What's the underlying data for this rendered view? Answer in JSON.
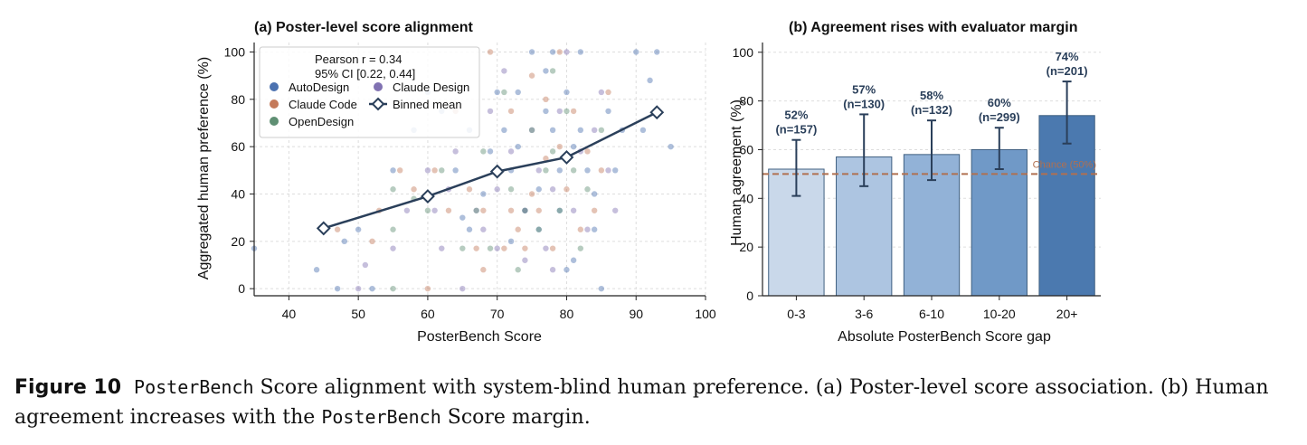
{
  "chart_data": [
    {
      "type": "scatter",
      "title": "(a) Poster-level score alignment",
      "xlabel": "PosterBench Score",
      "ylabel": "Aggregated human preference (%)",
      "xlim": [
        35,
        100
      ],
      "ylim": [
        -3,
        104
      ],
      "xticks": [
        40,
        50,
        60,
        70,
        80,
        90,
        100
      ],
      "yticks": [
        0,
        20,
        40,
        60,
        80,
        100
      ],
      "grid": true,
      "legend_placement": "top-left",
      "stats": [
        "Pearson r = 0.34",
        "95% CI [0.22, 0.44]"
      ],
      "legend": [
        {
          "label": "AutoDesign",
          "color": "#4C72B0",
          "marker": "dot"
        },
        {
          "label": "Claude Design",
          "color": "#8172B2",
          "marker": "dot"
        },
        {
          "label": "Claude Code",
          "color": "#C47A5A",
          "marker": "dot"
        },
        {
          "label": "Binned mean",
          "color": "#2A3F5A",
          "marker": "diamond-line"
        },
        {
          "label": "OpenDesign",
          "color": "#5F8F73",
          "marker": "dot"
        }
      ],
      "series": [
        {
          "name": "AutoDesign",
          "color": "#4C72B0",
          "points": [
            [
              35,
              17
            ],
            [
              44,
              8
            ],
            [
              47,
              0
            ],
            [
              48,
              20
            ],
            [
              50,
              25
            ],
            [
              52,
              0
            ],
            [
              55,
              50
            ],
            [
              58,
              67
            ],
            [
              60,
              83
            ],
            [
              62,
              75
            ],
            [
              64,
              50
            ],
            [
              65,
              30
            ],
            [
              66,
              67
            ],
            [
              68,
              40
            ],
            [
              70,
              83
            ],
            [
              71,
              67
            ],
            [
              72,
              50
            ],
            [
              73,
              60
            ],
            [
              75,
              100
            ],
            [
              76,
              25
            ],
            [
              77,
              75
            ],
            [
              78,
              67
            ],
            [
              79,
              50
            ],
            [
              80,
              83
            ],
            [
              81,
              60
            ],
            [
              82,
              67
            ],
            [
              83,
              50
            ],
            [
              84,
              40
            ],
            [
              85,
              0
            ],
            [
              86,
              75
            ],
            [
              87,
              50
            ],
            [
              88,
              67
            ],
            [
              90,
              100
            ],
            [
              91,
              67
            ],
            [
              92,
              88
            ],
            [
              93,
              100
            ],
            [
              95,
              60
            ],
            [
              78,
              100
            ],
            [
              82,
              100
            ],
            [
              76,
              42
            ],
            [
              74,
              33
            ],
            [
              72,
              20
            ],
            [
              80,
              8
            ],
            [
              84,
              25
            ],
            [
              79,
              33
            ],
            [
              73,
              83
            ],
            [
              77,
              92
            ],
            [
              81,
              12
            ],
            [
              66,
              25
            ],
            [
              69,
              58
            ]
          ]
        },
        {
          "name": "Claude Design",
          "color": "#8172B2",
          "points": [
            [
              50,
              0
            ],
            [
              51,
              10
            ],
            [
              55,
              17
            ],
            [
              57,
              33
            ],
            [
              60,
              50
            ],
            [
              62,
              17
            ],
            [
              63,
              42
            ],
            [
              65,
              0
            ],
            [
              67,
              33
            ],
            [
              68,
              25
            ],
            [
              70,
              17
            ],
            [
              70,
              42
            ],
            [
              72,
              58
            ],
            [
              74,
              33
            ],
            [
              75,
              67
            ],
            [
              76,
              50
            ],
            [
              77,
              17
            ],
            [
              78,
              42
            ],
            [
              79,
              75
            ],
            [
              80,
              100
            ],
            [
              81,
              33
            ],
            [
              82,
              58
            ],
            [
              83,
              25
            ],
            [
              84,
              67
            ],
            [
              85,
              83
            ],
            [
              86,
              50
            ],
            [
              87,
              33
            ],
            [
              74,
              12
            ],
            [
              78,
              8
            ],
            [
              71,
              92
            ],
            [
              69,
              75
            ],
            [
              64,
              58
            ],
            [
              61,
              33
            ]
          ]
        },
        {
          "name": "Claude Code",
          "color": "#C47A5A",
          "points": [
            [
              47,
              25
            ],
            [
              52,
              20
            ],
            [
              53,
              33
            ],
            [
              56,
              50
            ],
            [
              58,
              42
            ],
            [
              60,
              0
            ],
            [
              61,
              50
            ],
            [
              63,
              33
            ],
            [
              64,
              75
            ],
            [
              66,
              42
            ],
            [
              67,
              17
            ],
            [
              68,
              33
            ],
            [
              69,
              100
            ],
            [
              70,
              50
            ],
            [
              71,
              17
            ],
            [
              72,
              33
            ],
            [
              73,
              25
            ],
            [
              74,
              17
            ],
            [
              75,
              40
            ],
            [
              76,
              33
            ],
            [
              77,
              80
            ],
            [
              78,
              17
            ],
            [
              79,
              100
            ],
            [
              80,
              42
            ],
            [
              81,
              75
            ],
            [
              82,
              25
            ],
            [
              83,
              58
            ],
            [
              85,
              50
            ],
            [
              86,
              83
            ],
            [
              72,
              75
            ],
            [
              75,
              90
            ],
            [
              77,
              55
            ],
            [
              68,
              8
            ],
            [
              79,
              60
            ],
            [
              84,
              33
            ]
          ]
        },
        {
          "name": "OpenDesign",
          "color": "#5F8F73",
          "points": [
            [
              55,
              0
            ],
            [
              55,
              25
            ],
            [
              55,
              42
            ],
            [
              58,
              38
            ],
            [
              60,
              33
            ],
            [
              62,
              50
            ],
            [
              65,
              17
            ],
            [
              67,
              33
            ],
            [
              68,
              58
            ],
            [
              69,
              17
            ],
            [
              70,
              50
            ],
            [
              72,
              42
            ],
            [
              74,
              33
            ],
            [
              75,
              67
            ],
            [
              76,
              25
            ],
            [
              77,
              50
            ],
            [
              78,
              58
            ],
            [
              79,
              33
            ],
            [
              80,
              75
            ],
            [
              81,
              50
            ],
            [
              83,
              42
            ],
            [
              85,
              67
            ],
            [
              71,
              83
            ],
            [
              73,
              8
            ],
            [
              78,
              92
            ],
            [
              82,
              17
            ]
          ]
        },
        {
          "name": "Binned mean",
          "color": "#2A3F5A",
          "points": [
            [
              45,
              25.5
            ],
            [
              60,
              39
            ],
            [
              70,
              49.5
            ],
            [
              80,
              55.5
            ],
            [
              93,
              74.5
            ]
          ]
        }
      ]
    },
    {
      "type": "bar",
      "title": "(b) Agreement rises with evaluator margin",
      "xlabel": "Absolute PosterBench Score gap",
      "ylabel": "Human agreement (%)",
      "ylim": [
        0,
        104
      ],
      "yticks": [
        0,
        20,
        40,
        60,
        80,
        100
      ],
      "grid": true,
      "categories": [
        "0-3",
        "3-6",
        "6-10",
        "10-20",
        "20+"
      ],
      "values": [
        52,
        57,
        58,
        60,
        74
      ],
      "error_low": [
        41,
        45,
        47.5,
        52,
        62.5
      ],
      "error_high": [
        64,
        74.5,
        72,
        69,
        88
      ],
      "value_labels": [
        "52%",
        "57%",
        "58%",
        "60%",
        "74%"
      ],
      "count_labels": [
        "(n=157)",
        "(n=130)",
        "(n=132)",
        "(n=299)",
        "(n=201)"
      ],
      "bar_colors": [
        "#C9D8EA",
        "#ADC5E1",
        "#92B2D7",
        "#7099C7",
        "#4B79AF"
      ],
      "reference_line": {
        "value": 50,
        "label": "Chance (50%)",
        "color": "#B07050"
      }
    }
  ],
  "caption": {
    "label": "Figure 10",
    "p1": "PosterBench",
    "p2": " Score alignment with system-blind human preference. (a) Poster-level score association. (b) Human agreement increases with the ",
    "p3": "PosterBench",
    "p4": " Score margin."
  }
}
